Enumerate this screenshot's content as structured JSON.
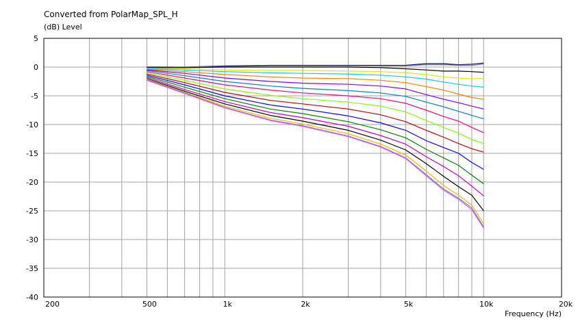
{
  "chart_data": {
    "type": "line",
    "title": "Converted from PolarMap_SPL_H",
    "ylabel": "(dB)  Level",
    "xlabel": "Frequency  (Hz)",
    "x_scale": "log",
    "xlim": [
      200,
      20000
    ],
    "ylim": [
      -40,
      5
    ],
    "grid": true,
    "x_ticks": [
      200,
      500,
      1000,
      2000,
      5000,
      10000,
      20000
    ],
    "x_tick_labels": [
      "200",
      "500",
      "1k",
      "2k",
      "5k",
      "10k",
      "20k"
    ],
    "y_ticks": [
      5,
      0,
      -5,
      -10,
      -15,
      -20,
      -25,
      -30,
      -35,
      -40
    ],
    "y_tick_labels": [
      "5",
      "0",
      "-5",
      "-10",
      "-15",
      "-20",
      "-25",
      "-30",
      "-35",
      "-40"
    ],
    "x": [
      500,
      700,
      1000,
      1500,
      2000,
      3000,
      4000,
      5000,
      6000,
      7000,
      8000,
      9000,
      10000
    ],
    "series": [
      {
        "color": "#000080",
        "values": [
          0,
          0,
          0.2,
          0.3,
          0.3,
          0.3,
          0.3,
          0.3,
          0.6,
          0.6,
          0.4,
          0.5,
          0.7
        ]
      },
      {
        "color": "#808080",
        "values": [
          -0.1,
          0,
          0.1,
          0.2,
          0.2,
          0.2,
          0.2,
          0.2,
          0.4,
          0.4,
          0.3,
          0.3,
          0.5
        ]
      },
      {
        "color": "#000000",
        "values": [
          -0.1,
          -0.1,
          0,
          0,
          0,
          0,
          -0.1,
          -0.3,
          -0.5,
          -0.7,
          -0.7,
          -0.8,
          -0.9
        ]
      },
      {
        "color": "#e6e600",
        "values": [
          -0.2,
          -0.3,
          -0.5,
          -0.6,
          -0.6,
          -0.7,
          -0.8,
          -1,
          -1.3,
          -1.7,
          -1.9,
          -2,
          -2
        ]
      },
      {
        "color": "#00ccff",
        "values": [
          -0.3,
          -0.5,
          -0.8,
          -1,
          -1.1,
          -1.2,
          -1.4,
          -1.7,
          -2.1,
          -2.6,
          -3,
          -3.3,
          -3.5
        ]
      },
      {
        "color": "#ff8000",
        "values": [
          -0.4,
          -0.8,
          -1.3,
          -1.7,
          -1.9,
          -2,
          -2.3,
          -2.7,
          -3.4,
          -4,
          -4.7,
          -5.3,
          -5.6
        ]
      },
      {
        "color": "#8000ff",
        "values": [
          -0.5,
          -1.1,
          -1.9,
          -2.5,
          -2.8,
          -3,
          -3.3,
          -3.8,
          -4.8,
          -5.6,
          -6.2,
          -6.8,
          -7.3
        ]
      },
      {
        "color": "#0080c0",
        "values": [
          -0.6,
          -1.5,
          -2.5,
          -3.3,
          -3.7,
          -4.1,
          -4.5,
          -5.1,
          -6.1,
          -6.9,
          -7.7,
          -8.4,
          -9
        ]
      },
      {
        "color": "#ff0080",
        "values": [
          -0.8,
          -1.9,
          -3.1,
          -4,
          -4.5,
          -5,
          -5.5,
          -6.3,
          -7.5,
          -8.6,
          -9.4,
          -10.5,
          -11.4
        ]
      },
      {
        "color": "#80ff00",
        "values": [
          -1,
          -2.3,
          -3.8,
          -4.9,
          -5.5,
          -6.1,
          -6.8,
          -7.8,
          -9.3,
          -10.5,
          -11.5,
          -12.6,
          -13.3
        ]
      },
      {
        "color": "#c00000",
        "values": [
          -1.2,
          -2.7,
          -4.4,
          -5.8,
          -6.4,
          -7.3,
          -8.3,
          -9.5,
          -11,
          -12.2,
          -13.3,
          -14.2,
          -14.8
        ]
      },
      {
        "color": "#0000ff",
        "values": [
          -1.4,
          -3.1,
          -5,
          -6.6,
          -7.3,
          -8.5,
          -9.7,
          -11,
          -12.8,
          -14,
          -15,
          -16.6,
          -17.8
        ]
      },
      {
        "color": "#008000",
        "values": [
          -1.6,
          -3.5,
          -5.5,
          -7.3,
          -8.1,
          -9.5,
          -10.9,
          -12.3,
          -14.3,
          -15.8,
          -17.1,
          -18.8,
          -20.3
        ]
      },
      {
        "color": "#c000c0",
        "values": [
          -1.8,
          -3.9,
          -6,
          -7.9,
          -8.8,
          -10.3,
          -11.9,
          -13.4,
          -15.6,
          -17.3,
          -18.9,
          -20.7,
          -22.4
        ]
      },
      {
        "color": "#000000",
        "values": [
          -2,
          -4.2,
          -6.4,
          -8.4,
          -9.4,
          -11,
          -12.7,
          -14.4,
          -16.8,
          -19,
          -20.8,
          -22.3,
          -25
        ]
      },
      {
        "color": "#ffb000",
        "values": [
          -2.1,
          -4.4,
          -6.8,
          -8.9,
          -9.9,
          -11.6,
          -13.4,
          -15.3,
          -18.1,
          -20.6,
          -22.3,
          -24,
          -27.3
        ]
      },
      {
        "color": "#40a0a0",
        "values": [
          -2.2,
          -4.5,
          -7,
          -9.2,
          -10.2,
          -12,
          -13.8,
          -15.8,
          -18.7,
          -21.2,
          -22.8,
          -24.5,
          -27.8
        ]
      },
      {
        "color": "#ff40ff",
        "values": [
          -2.3,
          -4.6,
          -7.1,
          -9.3,
          -10.3,
          -12.1,
          -13.9,
          -15.9,
          -18.9,
          -21.4,
          -23,
          -24.8,
          -28
        ]
      }
    ]
  }
}
